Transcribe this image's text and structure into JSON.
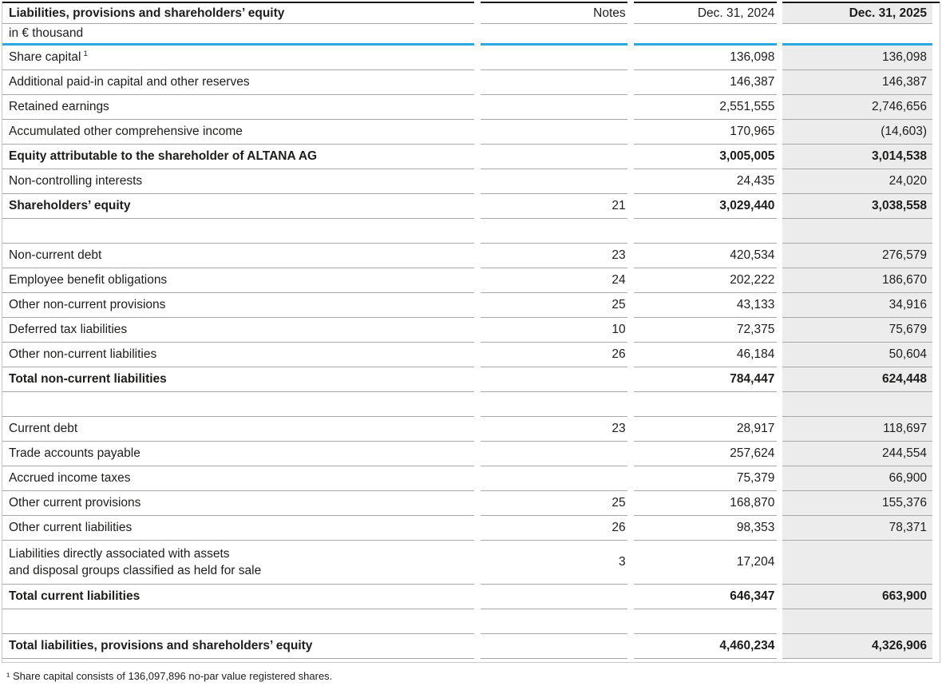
{
  "table": {
    "title": "Liabilities, provisions and shareholders’ equity",
    "unit_label": "in € thousand",
    "columns": [
      "Notes",
      "Dec. 31, 2024",
      "Dec. 31, 2025"
    ],
    "rows": [
      {
        "label": "Share capital",
        "sup": "1",
        "notes": "",
        "v2024": "136,098",
        "v2025": "136,098",
        "bold": false
      },
      {
        "label": "Additional paid-in capital and other reserves",
        "notes": "",
        "v2024": "146,387",
        "v2025": "146,387",
        "bold": false
      },
      {
        "label": "Retained earnings",
        "notes": "",
        "v2024": "2,551,555",
        "v2025": "2,746,656",
        "bold": false
      },
      {
        "label": "Accumulated other comprehensive income",
        "notes": "",
        "v2024": "170,965",
        "v2025": "(14,603)",
        "bold": false
      },
      {
        "label": "Equity attributable to the shareholder of ALTANA AG",
        "notes": "",
        "v2024": "3,005,005",
        "v2025": "3,014,538",
        "bold": true
      },
      {
        "label": "Non-controlling interests",
        "notes": "",
        "v2024": "24,435",
        "v2025": "24,020",
        "bold": false
      },
      {
        "label": "Shareholders’ equity",
        "notes": "21",
        "v2024": "3,029,440",
        "v2025": "3,038,558",
        "bold": true
      },
      {
        "spacer": true
      },
      {
        "label": "Non-current debt",
        "notes": "23",
        "v2024": "420,534",
        "v2025": "276,579",
        "bold": false
      },
      {
        "label": "Employee benefit obligations",
        "notes": "24",
        "v2024": "202,222",
        "v2025": "186,670",
        "bold": false
      },
      {
        "label": "Other non-current provisions",
        "notes": "25",
        "v2024": "43,133",
        "v2025": "34,916",
        "bold": false
      },
      {
        "label": "Deferred tax liabilities",
        "notes": "10",
        "v2024": "72,375",
        "v2025": "75,679",
        "bold": false
      },
      {
        "label": "Other non-current liabilities",
        "notes": "26",
        "v2024": "46,184",
        "v2025": "50,604",
        "bold": false
      },
      {
        "label": "Total non-current liabilities",
        "notes": "",
        "v2024": "784,447",
        "v2025": "624,448",
        "bold": true
      },
      {
        "spacer": true
      },
      {
        "label": "Current debt",
        "notes": "23",
        "v2024": "28,917",
        "v2025": "118,697",
        "bold": false
      },
      {
        "label": "Trade accounts payable",
        "notes": "",
        "v2024": "257,624",
        "v2025": "244,554",
        "bold": false
      },
      {
        "label": "Accrued income taxes",
        "notes": "",
        "v2024": "75,379",
        "v2025": "66,900",
        "bold": false
      },
      {
        "label": "Other current provisions",
        "notes": "25",
        "v2024": "168,870",
        "v2025": "155,376",
        "bold": false
      },
      {
        "label": "Other current liabilities",
        "notes": "26",
        "v2024": "98,353",
        "v2025": "78,371",
        "bold": false
      },
      {
        "label": "Liabilities directly associated with assets",
        "label2": "and disposal groups classified as held for sale",
        "notes": "3",
        "v2024": "17,204",
        "v2025": "",
        "bold": false
      },
      {
        "label": "Total current liabilities",
        "notes": "",
        "v2024": "646,347",
        "v2025": "663,900",
        "bold": true
      },
      {
        "spacer": true
      },
      {
        "label": "Total liabilities, provisions and shareholders’ equity",
        "notes": "",
        "v2024": "4,460,234",
        "v2025": "4,326,906",
        "bold": true
      }
    ],
    "footnote": "¹ Share capital consists of 136,097,896 no-par value registered shares."
  },
  "colors": {
    "accent_blue": "#2aa9e0",
    "highlight_column_bg": "#ececec",
    "row_border": "#a8a8a8",
    "top_border": "#161616"
  }
}
